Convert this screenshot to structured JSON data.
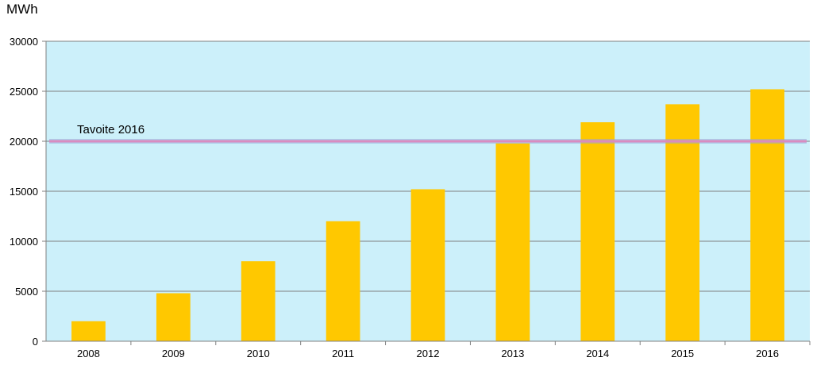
{
  "chart_data": {
    "type": "bar",
    "title": "",
    "xlabel": "",
    "ylabel": "MWh",
    "categories": [
      "2008",
      "2009",
      "2010",
      "2011",
      "2012",
      "2013",
      "2014",
      "2015",
      "2016"
    ],
    "series": [
      {
        "values": [
          2000,
          4800,
          8000,
          12000,
          15200,
          19800,
          21900,
          23700,
          25200
        ],
        "color": "#FFC800"
      }
    ],
    "ylim": [
      0,
      30000
    ],
    "yticks": [
      "0",
      "5000",
      "10000",
      "15000",
      "20000",
      "25000",
      "30000"
    ],
    "grid": true,
    "legend": "none",
    "target": {
      "label": "Tavoite 2016",
      "value": 20000,
      "color": "#D98CC0"
    },
    "colors": {
      "plot_background": "#CCF0FA",
      "gridline": "#808080",
      "axis": "#808080"
    }
  }
}
